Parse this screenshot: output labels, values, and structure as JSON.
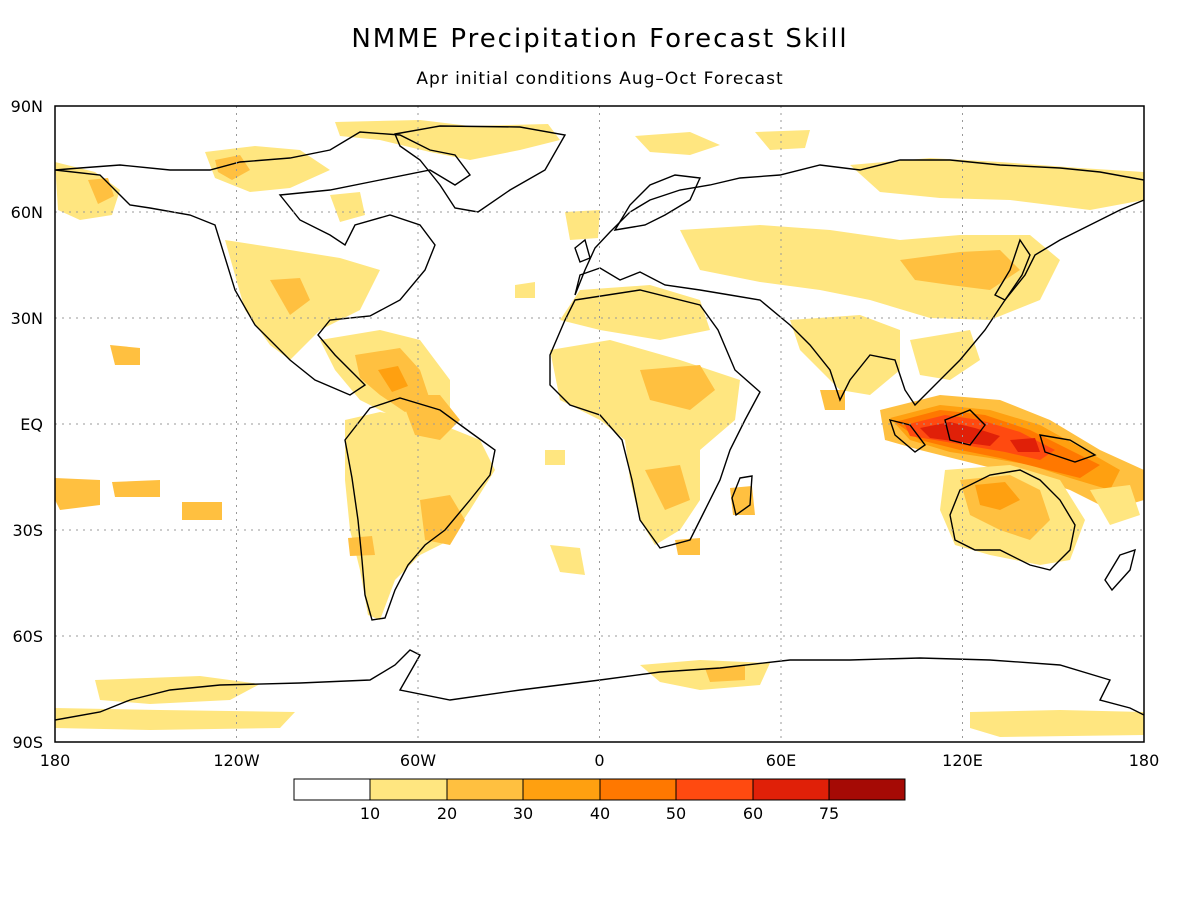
{
  "title": "NMME Precipitation Forecast Skill",
  "subtitle": "Apr initial conditions  Aug–Oct Forecast",
  "axes": {
    "lat_labels": [
      "90N",
      "60N",
      "30N",
      "EQ",
      "30S",
      "60S",
      "90S"
    ],
    "lon_labels": [
      "180",
      "120W",
      "60W",
      "0",
      "60E",
      "120E",
      "180"
    ]
  },
  "colorbar": {
    "labels": [
      "10",
      "20",
      "30",
      "40",
      "50",
      "60",
      "75"
    ],
    "colors": [
      "#ffffff",
      "#ffe680",
      "#ffc040",
      "#ffa010",
      "#ff7800",
      "#ff4a10",
      "#e02008",
      "#a50a05"
    ]
  },
  "colors": {
    "coastline": "#000000",
    "grid": "#999999"
  }
}
